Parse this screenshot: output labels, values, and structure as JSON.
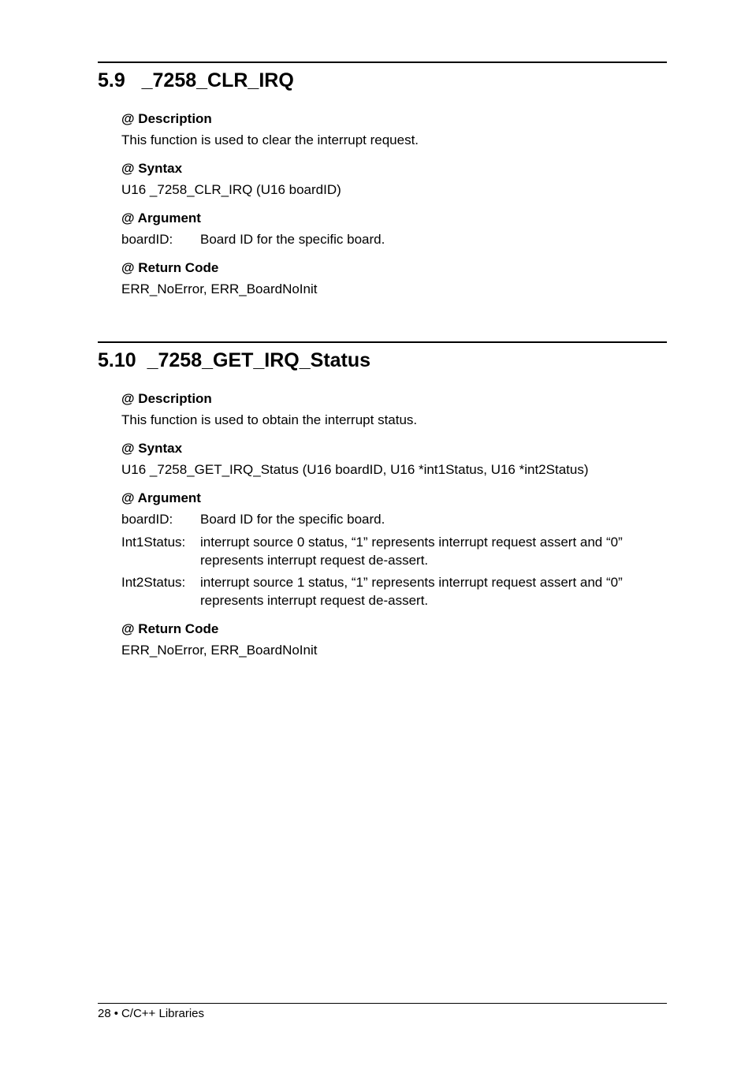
{
  "section1": {
    "number": "5.9",
    "title": "_7258_CLR_IRQ",
    "description_head": "@ Description",
    "description_body": " This function is used to clear the interrupt request.",
    "syntax_head": "@ Syntax",
    "syntax_body": "U16  _7258_CLR_IRQ (U16 boardID)",
    "argument_head": "@ Argument",
    "arg_label": "boardID:",
    "arg_desc": "Board ID for the specific board.",
    "return_head": "@ Return Code",
    "return_body": "ERR_NoError, ERR_BoardNoInit"
  },
  "section2": {
    "number": "5.10",
    "title": "_7258_GET_IRQ_Status",
    "description_head": "@ Description",
    "description_body": "This function is used to obtain the interrupt status.",
    "syntax_head": "@ Syntax",
    "syntax_body": "U16  _7258_GET_IRQ_Status (U16 boardID, U16 *int1Status, U16 *int2Status)",
    "argument_head": "@ Argument",
    "args": [
      {
        "label": "boardID:",
        "desc": "Board ID for the specific board."
      },
      {
        "label": "Int1Status:",
        "desc": "interrupt source 0 status, “1” represents interrupt request assert and “0” represents interrupt request de-assert."
      },
      {
        "label": "Int2Status:",
        "desc": "interrupt source 1 status, “1” represents interrupt request assert and “0” represents interrupt request de-assert."
      }
    ],
    "return_head": "@ Return Code",
    "return_body": "ERR_NoError, ERR_BoardNoInit"
  },
  "footer": {
    "page_no": "28",
    "bullet": "•",
    "text": "C/C++ Libraries"
  }
}
